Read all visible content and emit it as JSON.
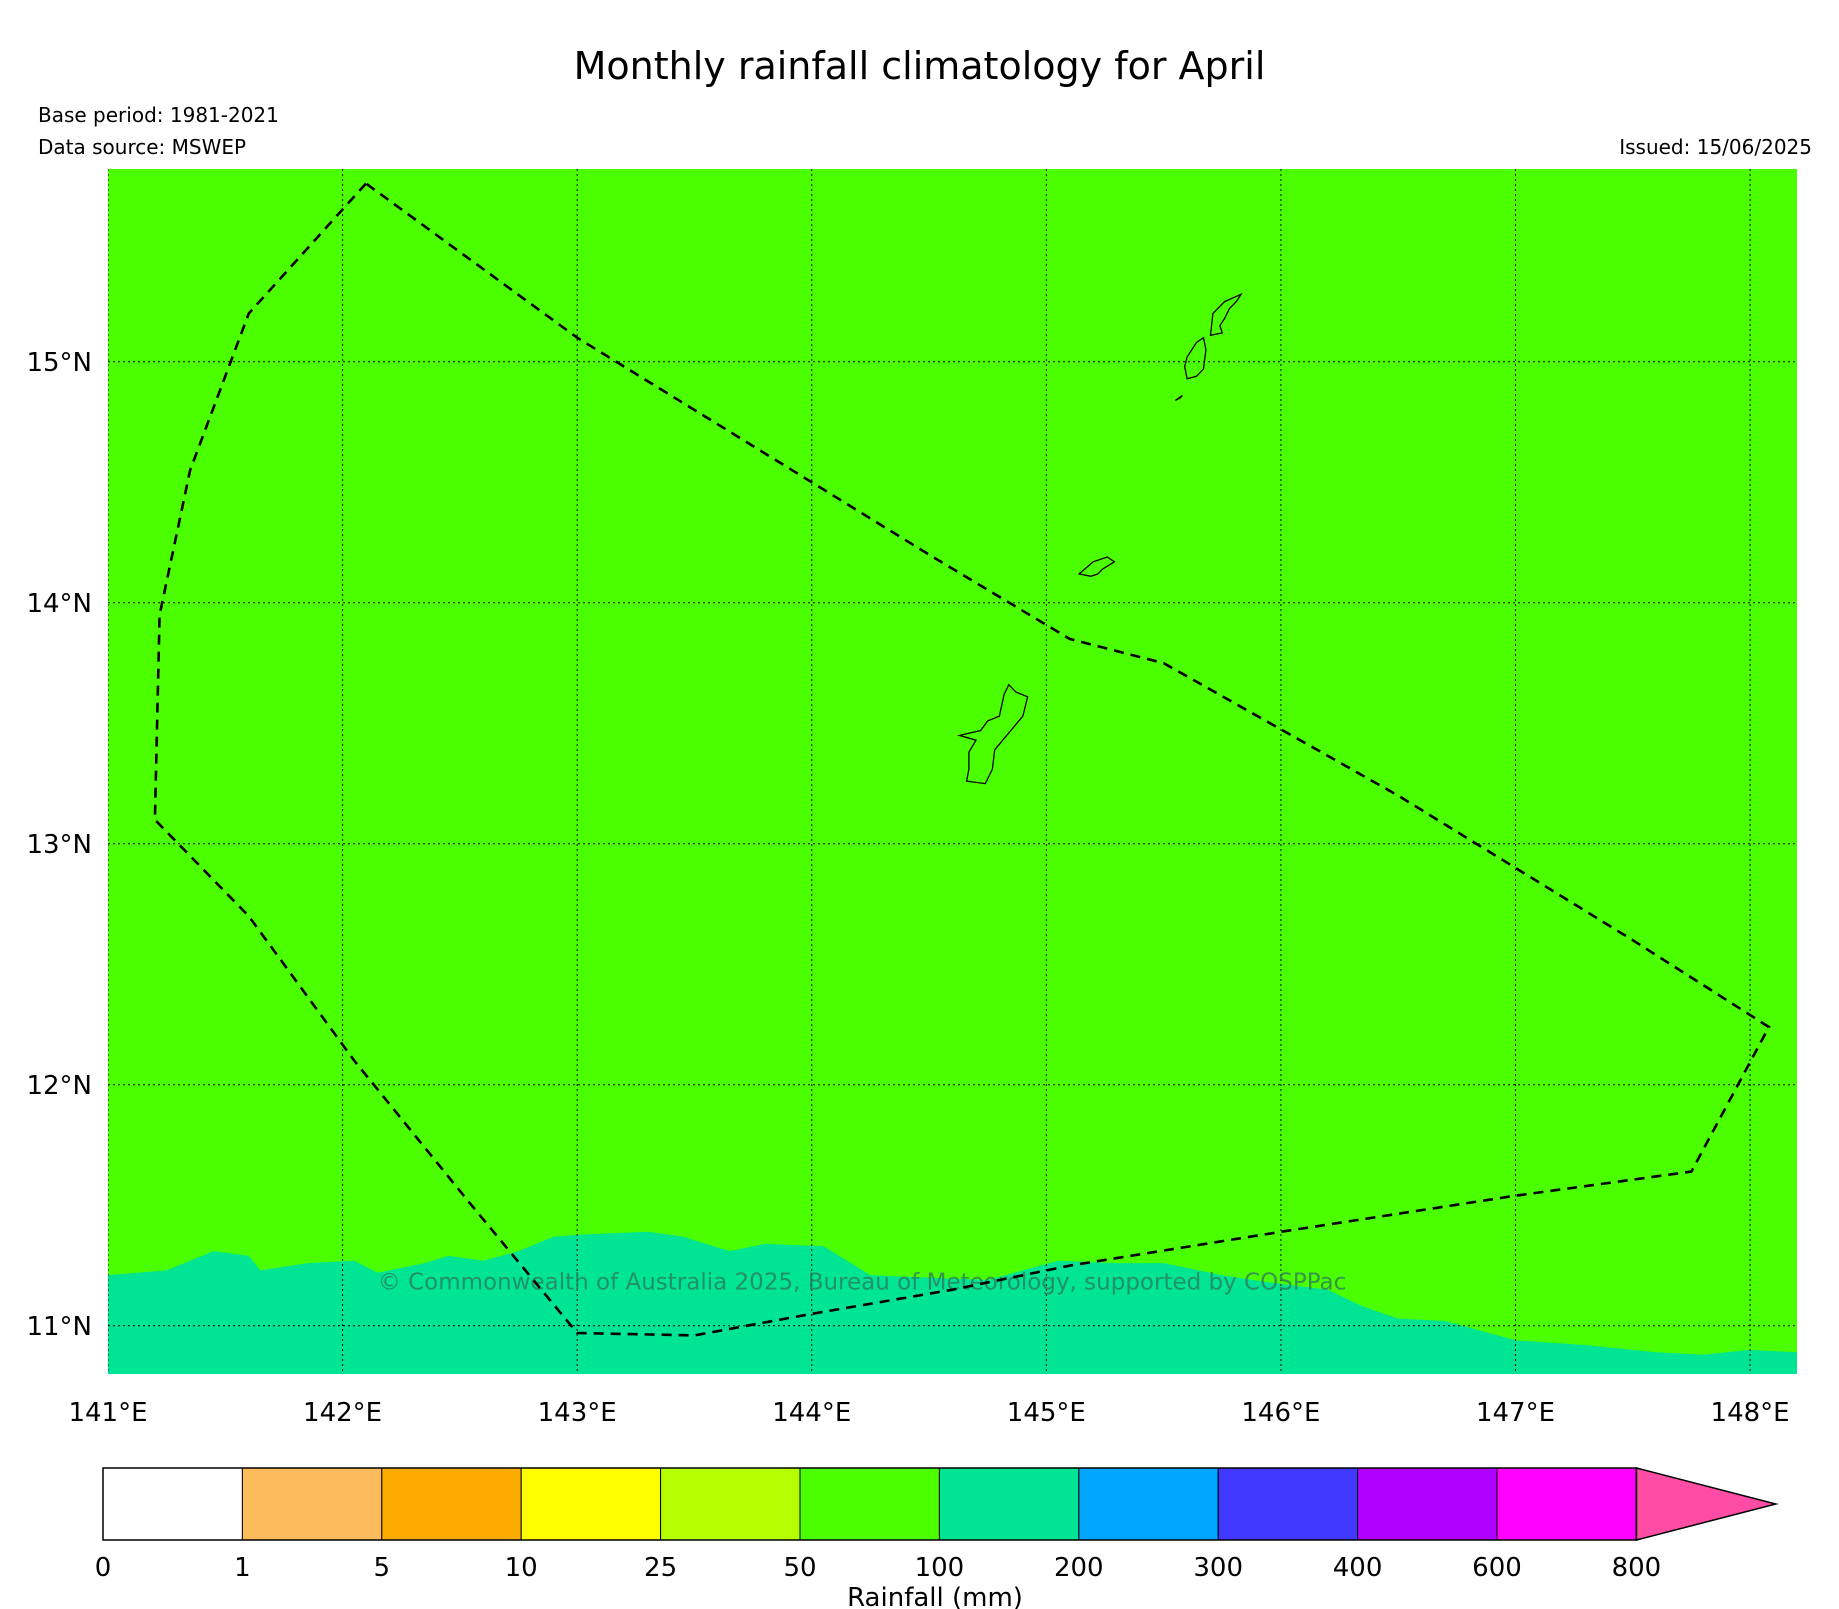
{
  "title": "Monthly rainfall climatology for April",
  "base_period": "Base period: 1981-2021",
  "data_source": "Data source: MSWEP",
  "issued": "Issued: 15/06/2025",
  "copyright": "© Commonwealth of Australia 2025, Bureau of Meteorology, supported by COSPPac",
  "map": {
    "lon_range": [
      141.0,
      148.2
    ],
    "lat_range": [
      10.8,
      15.8
    ],
    "lon_ticks": [
      {
        "v": 141,
        "label": "141°E"
      },
      {
        "v": 142,
        "label": "142°E"
      },
      {
        "v": 143,
        "label": "143°E"
      },
      {
        "v": 144,
        "label": "144°E"
      },
      {
        "v": 145,
        "label": "145°E"
      },
      {
        "v": 146,
        "label": "146°E"
      },
      {
        "v": 147,
        "label": "147°E"
      },
      {
        "v": 148,
        "label": "148°E"
      }
    ],
    "lat_ticks": [
      {
        "v": 11,
        "label": "11°N"
      },
      {
        "v": 12,
        "label": "12°N"
      },
      {
        "v": 13,
        "label": "13°N"
      },
      {
        "v": 14,
        "label": "14°N"
      },
      {
        "v": 15,
        "label": "15°N"
      }
    ],
    "background_class_color": "#4cff00",
    "southern_band_color": "#00e593",
    "southern_band_class": "100-200",
    "background_class": "50-100",
    "band_top_edge": [
      [
        141.0,
        11.21
      ],
      [
        141.25,
        11.23
      ],
      [
        141.45,
        11.31
      ],
      [
        141.6,
        11.29
      ],
      [
        141.65,
        11.23
      ],
      [
        141.85,
        11.26
      ],
      [
        142.05,
        11.27
      ],
      [
        142.15,
        11.22
      ],
      [
        142.35,
        11.26
      ],
      [
        142.45,
        11.29
      ],
      [
        142.6,
        11.27
      ],
      [
        142.75,
        11.31
      ],
      [
        142.9,
        11.37
      ],
      [
        143.05,
        11.38
      ],
      [
        143.3,
        11.39
      ],
      [
        143.45,
        11.37
      ],
      [
        143.65,
        11.31
      ],
      [
        143.8,
        11.34
      ],
      [
        144.05,
        11.33
      ],
      [
        144.25,
        11.21
      ],
      [
        144.5,
        11.2
      ],
      [
        144.75,
        11.19
      ],
      [
        145.05,
        11.27
      ],
      [
        145.3,
        11.26
      ],
      [
        145.5,
        11.26
      ],
      [
        145.75,
        11.21
      ],
      [
        145.95,
        11.18
      ],
      [
        146.2,
        11.15
      ],
      [
        146.35,
        11.08
      ],
      [
        146.5,
        11.03
      ],
      [
        146.7,
        11.02
      ],
      [
        147.0,
        10.94
      ],
      [
        147.3,
        10.92
      ],
      [
        147.6,
        10.89
      ],
      [
        147.8,
        10.88
      ],
      [
        148.0,
        10.9
      ],
      [
        148.2,
        10.89
      ]
    ],
    "eez_boundary": [
      [
        142.1,
        15.74
      ],
      [
        141.6,
        15.2
      ],
      [
        141.35,
        14.55
      ],
      [
        141.22,
        13.95
      ],
      [
        141.2,
        13.1
      ],
      [
        141.6,
        12.7
      ],
      [
        142.05,
        12.1
      ],
      [
        142.55,
        11.5
      ],
      [
        143.0,
        10.97
      ],
      [
        143.5,
        10.96
      ],
      [
        144.0,
        11.05
      ],
      [
        144.6,
        11.15
      ],
      [
        145.1,
        11.25
      ],
      [
        146.0,
        11.39
      ],
      [
        147.0,
        11.54
      ],
      [
        147.75,
        11.64
      ],
      [
        148.08,
        12.24
      ],
      [
        147.5,
        12.6
      ],
      [
        146.5,
        13.2
      ],
      [
        145.5,
        13.75
      ],
      [
        145.1,
        13.85
      ],
      [
        144.5,
        14.2
      ],
      [
        144.0,
        14.5
      ],
      [
        143.0,
        15.1
      ],
      [
        142.1,
        15.74
      ]
    ],
    "islands": [
      {
        "name": "Guam",
        "outline": [
          [
            144.66,
            13.26
          ],
          [
            144.74,
            13.25
          ],
          [
            144.77,
            13.31
          ],
          [
            144.78,
            13.39
          ],
          [
            144.84,
            13.46
          ],
          [
            144.9,
            13.53
          ],
          [
            144.92,
            13.61
          ],
          [
            144.87,
            13.63
          ],
          [
            144.84,
            13.66
          ],
          [
            144.82,
            13.62
          ],
          [
            144.8,
            13.53
          ],
          [
            144.75,
            13.51
          ],
          [
            144.72,
            13.47
          ],
          [
            144.63,
            13.45
          ],
          [
            144.7,
            13.43
          ],
          [
            144.67,
            13.38
          ],
          [
            144.67,
            13.31
          ],
          [
            144.66,
            13.26
          ]
        ]
      },
      {
        "name": "Rota",
        "outline": [
          [
            145.14,
            14.12
          ],
          [
            145.2,
            14.17
          ],
          [
            145.26,
            14.19
          ],
          [
            145.29,
            14.17
          ],
          [
            145.24,
            14.14
          ],
          [
            145.22,
            14.12
          ],
          [
            145.19,
            14.11
          ],
          [
            145.14,
            14.12
          ]
        ]
      },
      {
        "name": "Tinian",
        "outline": [
          [
            145.6,
            14.93
          ],
          [
            145.64,
            14.94
          ],
          [
            145.67,
            14.97
          ],
          [
            145.68,
            15.05
          ],
          [
            145.67,
            15.1
          ],
          [
            145.64,
            15.08
          ],
          [
            145.6,
            15.02
          ],
          [
            145.59,
            14.98
          ],
          [
            145.6,
            14.93
          ]
        ]
      },
      {
        "name": "Saipan",
        "outline": [
          [
            145.7,
            15.11
          ],
          [
            145.71,
            15.2
          ],
          [
            145.76,
            15.25
          ],
          [
            145.83,
            15.28
          ],
          [
            145.81,
            15.25
          ],
          [
            145.78,
            15.22
          ],
          [
            145.76,
            15.18
          ],
          [
            145.74,
            15.15
          ],
          [
            145.75,
            15.12
          ],
          [
            145.7,
            15.11
          ]
        ]
      },
      {
        "name": "Aguijan",
        "outline": [
          [
            145.55,
            14.84
          ],
          [
            145.58,
            14.86
          ],
          [
            145.57,
            14.85
          ],
          [
            145.55,
            14.84
          ]
        ]
      }
    ]
  },
  "colorbar": {
    "title": "Rainfall (mm)",
    "ticks": [
      "0",
      "1",
      "5",
      "10",
      "25",
      "50",
      "100",
      "200",
      "300",
      "400",
      "600",
      "800"
    ],
    "colors": [
      "#ffffff",
      "#fdbc5c",
      "#fdab00",
      "#ffff00",
      "#b4ff00",
      "#4cff00",
      "#00e593",
      "#00a5ff",
      "#4138ff",
      "#b000ff",
      "#ff00ff",
      "#ff4da6"
    ]
  }
}
